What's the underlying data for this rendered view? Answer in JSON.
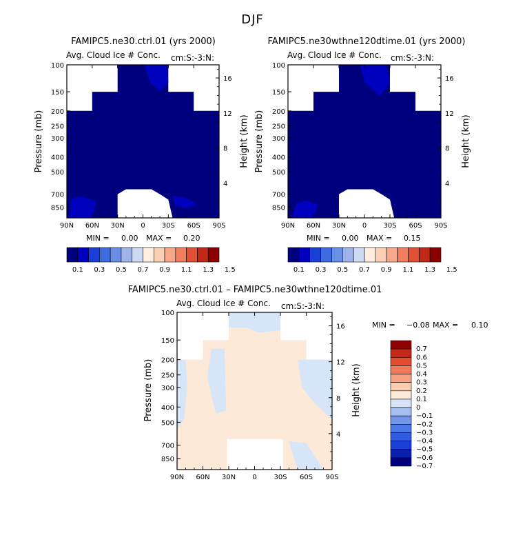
{
  "page_title": "DJF",
  "colors": {
    "ice_palette": [
      "#00007f",
      "#0000bf",
      "#1a3fd6",
      "#3d6be0",
      "#6a8fe6",
      "#9fb5ea",
      "#ced9f2",
      "#fdeee0",
      "#fbd0b4",
      "#f8a88a",
      "#f27e60",
      "#e05034",
      "#c22818",
      "#8a0000"
    ],
    "diff_palette": [
      "#00007f",
      "#0a1fae",
      "#1a3fd6",
      "#2f5ce0",
      "#4d79e6",
      "#7696ea",
      "#a6bdef",
      "#d6e4f8",
      "#fde9d8",
      "#fbcdb0",
      "#f8a282",
      "#f27a58",
      "#e34e30",
      "#c52818",
      "#8f0000"
    ],
    "diff_positive": "#fde9d8",
    "diff_negative": "#d6e6f8"
  },
  "chart_data": [
    {
      "type": "heatmap",
      "title": "FAMIPC5.ne30.ctrl.01 (yrs 2000)",
      "variable": "Avg. Cloud Ice # Conc.",
      "units_label": "cm:S:-3:N:",
      "ylabel": "Pressure (mb)",
      "y2label": "Height (km)",
      "x_ticks": [
        "90N",
        "60N",
        "30N",
        "0",
        "30S",
        "60S",
        "90S"
      ],
      "x_tick_values": [
        90,
        60,
        30,
        0,
        -30,
        -60,
        -90
      ],
      "y_ticks": [
        "100",
        "150",
        "200",
        "250",
        "300",
        "400",
        "500",
        "700",
        "850"
      ],
      "y_tick_values": [
        100,
        150,
        200,
        250,
        300,
        400,
        500,
        700,
        850
      ],
      "height_ticks": [
        "4",
        "8",
        "12",
        "16"
      ],
      "height_tick_values": [
        4,
        8,
        12,
        16
      ],
      "xlim": [
        90,
        -90
      ],
      "ylim": [
        1000,
        100
      ],
      "min_label": "MIN =",
      "min_value": "0.00",
      "max_label": "MAX =",
      "max_value": "0.20",
      "colorbar_labels": [
        "0.1",
        "0.3",
        "0.5",
        "0.7",
        "0.9",
        "1.1",
        "1.3",
        "1.5"
      ],
      "domain_polygon": [
        [
          90,
          1000
        ],
        [
          90,
          200
        ],
        [
          60,
          200
        ],
        [
          60,
          150
        ],
        [
          30,
          150
        ],
        [
          30,
          100
        ],
        [
          -30,
          100
        ],
        [
          -30,
          150
        ],
        [
          -60,
          150
        ],
        [
          -60,
          200
        ],
        [
          -90,
          200
        ],
        [
          -90,
          1000
        ]
      ],
      "masked_polygon": [
        [
          30,
          1000
        ],
        [
          30,
          700
        ],
        [
          20,
          650
        ],
        [
          -10,
          650
        ],
        [
          -20,
          700
        ],
        [
          -30,
          760
        ],
        [
          -35,
          1000
        ]
      ],
      "light_regions": [
        {
          "name": "southern-ice-cap",
          "points": [
            [
              88,
              1000
            ],
            [
              85,
              760
            ],
            [
              75,
              720
            ],
            [
              55,
              780
            ],
            [
              60,
              1000
            ]
          ]
        },
        {
          "name": "upper-plume",
          "points": [
            [
              -2,
              100
            ],
            [
              -28,
              100
            ],
            [
              -30,
              130
            ],
            [
              -20,
              150
            ],
            [
              -8,
              130
            ]
          ]
        },
        {
          "name": "mid-lat-lobe",
          "points": [
            [
              -35,
              720
            ],
            [
              -50,
              740
            ],
            [
              -65,
              820
            ],
            [
              -50,
              860
            ],
            [
              -38,
              820
            ]
          ]
        }
      ]
    },
    {
      "type": "heatmap",
      "title": "FAMIPC5.ne30wthne120dtime.01 (yrs 2000)",
      "variable": "Avg. Cloud Ice # Conc.",
      "units_label": "cm:S:-3:N:",
      "ylabel": "Pressure (mb)",
      "y2label": "Height (km)",
      "x_ticks": [
        "90N",
        "60N",
        "30N",
        "0",
        "30S",
        "60S",
        "90S"
      ],
      "x_tick_values": [
        90,
        60,
        30,
        0,
        -30,
        -60,
        -90
      ],
      "y_ticks": [
        "100",
        "150",
        "200",
        "250",
        "300",
        "400",
        "500",
        "700",
        "850"
      ],
      "y_tick_values": [
        100,
        150,
        200,
        250,
        300,
        400,
        500,
        700,
        850
      ],
      "height_ticks": [
        "4",
        "8",
        "12",
        "16"
      ],
      "height_tick_values": [
        4,
        8,
        12,
        16
      ],
      "xlim": [
        90,
        -90
      ],
      "ylim": [
        1000,
        100
      ],
      "min_label": "MIN =",
      "min_value": "0.00",
      "max_label": "MAX =",
      "max_value": "0.15",
      "colorbar_labels": [
        "0.1",
        "0.3",
        "0.5",
        "0.7",
        "0.9",
        "1.1",
        "1.3",
        "1.5"
      ],
      "domain_polygon": [
        [
          90,
          1000
        ],
        [
          90,
          200
        ],
        [
          60,
          200
        ],
        [
          60,
          150
        ],
        [
          30,
          150
        ],
        [
          30,
          100
        ],
        [
          -30,
          100
        ],
        [
          -30,
          150
        ],
        [
          -60,
          150
        ],
        [
          -60,
          200
        ],
        [
          -90,
          200
        ],
        [
          -90,
          1000
        ]
      ],
      "masked_polygon": [
        [
          30,
          1000
        ],
        [
          30,
          700
        ],
        [
          20,
          650
        ],
        [
          -10,
          650
        ],
        [
          -20,
          700
        ],
        [
          -30,
          760
        ],
        [
          -35,
          1000
        ]
      ],
      "light_regions": [
        {
          "name": "southern-ice-cap",
          "points": [
            [
              85,
              1000
            ],
            [
              80,
              800
            ],
            [
              68,
              770
            ],
            [
              55,
              820
            ],
            [
              60,
              1000
            ]
          ]
        },
        {
          "name": "upper-plume",
          "points": [
            [
              5,
              100
            ],
            [
              -25,
              100
            ],
            [
              -30,
              130
            ],
            [
              -18,
              160
            ],
            [
              0,
              130
            ]
          ]
        }
      ]
    },
    {
      "type": "heatmap",
      "title": "FAMIPC5.ne30.ctrl.01 – FAMIPC5.ne30wthne120dtime.01",
      "variable": "Avg. Cloud Ice # Conc.",
      "units_label": "cm:S:-3:N:",
      "ylabel": "Pressure (mb)",
      "y2label": "Height (km)",
      "x_ticks": [
        "90N",
        "60N",
        "30N",
        "0",
        "30S",
        "60S",
        "90S"
      ],
      "x_tick_values": [
        90,
        60,
        30,
        0,
        -30,
        -60,
        -90
      ],
      "y_ticks": [
        "100",
        "150",
        "200",
        "250",
        "300",
        "400",
        "500",
        "700",
        "850"
      ],
      "y_tick_values": [
        100,
        150,
        200,
        250,
        300,
        400,
        500,
        700,
        850
      ],
      "height_ticks": [
        "4",
        "8",
        "12",
        "16"
      ],
      "height_tick_values": [
        4,
        8,
        12,
        16
      ],
      "xlim": [
        90,
        -90
      ],
      "ylim": [
        1000,
        100
      ],
      "min_label": "MIN =",
      "min_value": "−0.08",
      "max_label": "MAX =",
      "max_value": "0.10",
      "colorbar_labels": [
        "0.7",
        "0.6",
        "0.5",
        "0.4",
        "0.3",
        "0.2",
        "0.1",
        "0",
        "−0.1",
        "−0.2",
        "−0.3",
        "−0.4",
        "−0.5",
        "−0.6",
        "−0.7"
      ],
      "domain_polygon": [
        [
          90,
          1000
        ],
        [
          90,
          200
        ],
        [
          60,
          200
        ],
        [
          60,
          150
        ],
        [
          30,
          150
        ],
        [
          30,
          100
        ],
        [
          -30,
          100
        ],
        [
          -30,
          150
        ],
        [
          -60,
          150
        ],
        [
          -60,
          200
        ],
        [
          -90,
          200
        ],
        [
          -90,
          1000
        ]
      ],
      "masked_polygon": [
        [
          32,
          1000
        ],
        [
          32,
          640
        ],
        [
          -33,
          640
        ],
        [
          -33,
          1000
        ]
      ],
      "negative_regions": [
        {
          "name": "upper-band",
          "points": [
            [
              30,
              100
            ],
            [
              -30,
              100
            ],
            [
              -30,
              130
            ],
            [
              -5,
              135
            ],
            [
              10,
              125
            ],
            [
              30,
              125
            ]
          ]
        },
        {
          "name": "northern-column",
          "points": [
            [
              80,
              200
            ],
            [
              90,
              200
            ],
            [
              90,
              560
            ],
            [
              82,
              480
            ],
            [
              78,
              300
            ]
          ]
        },
        {
          "name": "mid-column",
          "points": [
            [
              50,
              170
            ],
            [
              35,
              170
            ],
            [
              33,
              420
            ],
            [
              45,
              440
            ],
            [
              55,
              260
            ]
          ]
        },
        {
          "name": "southern-column",
          "points": [
            [
              -50,
              200
            ],
            [
              -90,
              200
            ],
            [
              -90,
              480
            ],
            [
              -70,
              380
            ],
            [
              -55,
              300
            ]
          ]
        },
        {
          "name": "southern-lower",
          "points": [
            [
              -40,
              660
            ],
            [
              -60,
              680
            ],
            [
              -80,
              1000
            ],
            [
              -50,
              1000
            ]
          ]
        }
      ]
    }
  ]
}
